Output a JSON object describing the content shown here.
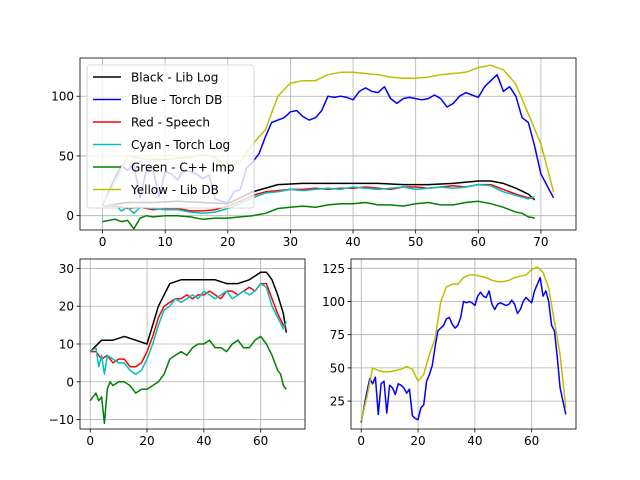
{
  "chart_data": [
    {
      "type": "line",
      "title": "",
      "xlabel": "",
      "ylabel": "",
      "grid": true,
      "xlim": [
        -3.6,
        75.6
      ],
      "ylim": [
        -12,
        132
      ],
      "xticks": [
        0,
        10,
        20,
        30,
        40,
        50,
        60,
        70
      ],
      "yticks": [
        0,
        50,
        100
      ],
      "legend": {
        "position": "upper-left"
      },
      "series": [
        {
          "name": "Black - Lib Log",
          "color": "#000000",
          "x": [
            0,
            4,
            8,
            12,
            16,
            20,
            24,
            28,
            32,
            36,
            40,
            44,
            48,
            52,
            56,
            60,
            62,
            64,
            66,
            68,
            69
          ],
          "values": [
            8,
            11,
            11,
            12,
            11,
            10,
            20,
            26,
            27,
            27,
            27,
            27,
            26,
            26,
            27,
            29,
            29,
            27,
            23,
            18,
            13
          ]
        },
        {
          "name": "Blue - Torch DB",
          "color": "#0000ff",
          "x": [
            0,
            2,
            3,
            4,
            5,
            6,
            7,
            8,
            9,
            10,
            11,
            12,
            13,
            14,
            15,
            16,
            17,
            18,
            19,
            20,
            21,
            22,
            23,
            24,
            25,
            26,
            27,
            28,
            29,
            30,
            31,
            32,
            33,
            34,
            35,
            36,
            37,
            38,
            39,
            40,
            41,
            42,
            43,
            44,
            45,
            46,
            47,
            48,
            49,
            50,
            51,
            52,
            53,
            54,
            55,
            56,
            57,
            58,
            59,
            60,
            61,
            62,
            63,
            64,
            65,
            66,
            67,
            68,
            69,
            70,
            72
          ],
          "values": [
            9,
            32,
            42,
            38,
            43,
            15,
            38,
            40,
            16,
            37,
            35,
            30,
            38,
            37,
            35,
            31,
            34,
            14,
            12,
            11,
            20,
            22,
            40,
            45,
            52,
            66,
            78,
            80,
            82,
            87,
            88,
            83,
            80,
            82,
            88,
            100,
            99,
            100,
            99,
            97,
            104,
            107,
            104,
            103,
            108,
            98,
            94,
            98,
            99,
            98,
            97,
            98,
            101,
            98,
            91,
            94,
            100,
            103,
            101,
            99,
            108,
            113,
            118,
            104,
            108,
            100,
            82,
            78,
            58,
            35,
            15
          ]
        },
        {
          "name": "Red - Speech",
          "color": "#ff0000",
          "x": [
            0,
            2,
            4,
            6,
            8,
            10,
            12,
            14,
            16,
            18,
            20,
            22,
            24,
            26,
            28,
            30,
            32,
            34,
            36,
            38,
            40,
            42,
            44,
            46,
            48,
            50,
            52,
            54,
            56,
            58,
            60,
            62,
            64,
            66,
            68,
            69
          ],
          "values": [
            8,
            8,
            6,
            7,
            5,
            6,
            6,
            4,
            4,
            5,
            8,
            12,
            17,
            20,
            21,
            22,
            22,
            23,
            22,
            23,
            23,
            24,
            23,
            22,
            24,
            24,
            23,
            24,
            25,
            24,
            26,
            26,
            22,
            18,
            15,
            14
          ]
        },
        {
          "name": "Cyan - Torch Log",
          "color": "#00bfbf",
          "x": [
            0,
            2,
            3,
            4,
            5,
            6,
            8,
            10,
            12,
            14,
            16,
            18,
            20,
            22,
            24,
            26,
            28,
            30,
            32,
            34,
            36,
            38,
            40,
            42,
            44,
            46,
            48,
            50,
            52,
            54,
            56,
            58,
            60,
            62,
            64,
            66,
            68,
            69
          ],
          "values": [
            8,
            9,
            4,
            7,
            2,
            7,
            6,
            5,
            5,
            3,
            2,
            3,
            6,
            10,
            15,
            19,
            20,
            22,
            21,
            22,
            23,
            22,
            24,
            23,
            22,
            23,
            24,
            22,
            23,
            24,
            23,
            24,
            26,
            25,
            20,
            17,
            14,
            16
          ]
        },
        {
          "name": "Green - C++ Imp",
          "color": "#008000",
          "x": [
            0,
            2,
            3,
            4,
            5,
            6,
            7,
            8,
            10,
            12,
            14,
            16,
            18,
            20,
            22,
            24,
            26,
            28,
            30,
            32,
            34,
            36,
            38,
            40,
            42,
            44,
            46,
            48,
            50,
            52,
            54,
            56,
            58,
            60,
            62,
            64,
            66,
            67,
            68,
            69
          ],
          "values": [
            -5,
            -3,
            -5,
            -4,
            -11,
            -2,
            0,
            -1,
            0,
            0,
            -1,
            -3,
            -2,
            -2,
            -1,
            0,
            2,
            6,
            7,
            8,
            7,
            9,
            10,
            10,
            11,
            9,
            9,
            8,
            10,
            11,
            9,
            9,
            11,
            12,
            10,
            7,
            3,
            2,
            -1,
            -2
          ]
        },
        {
          "name": "Yellow - Lib DB",
          "color": "#bfbf00",
          "x": [
            0,
            2,
            4,
            6,
            8,
            10,
            12,
            14,
            16,
            18,
            20,
            22,
            24,
            26,
            28,
            30,
            32,
            34,
            36,
            38,
            40,
            42,
            44,
            46,
            48,
            50,
            52,
            54,
            56,
            58,
            60,
            62,
            64,
            66,
            68,
            70,
            72
          ],
          "values": [
            10,
            28,
            50,
            48,
            47,
            47,
            48,
            49,
            51,
            49,
            40,
            45,
            60,
            72,
            100,
            111,
            113,
            113,
            118,
            120,
            120,
            119,
            118,
            116,
            115,
            115,
            116,
            118,
            119,
            120,
            124,
            126,
            122,
            110,
            85,
            60,
            20
          ]
        }
      ]
    },
    {
      "type": "line",
      "title": "",
      "xlabel": "",
      "ylabel": "",
      "grid": true,
      "xlim": [
        -3.6,
        75.6
      ],
      "ylim": [
        -12.5,
        32.5
      ],
      "xticks": [
        0,
        20,
        40,
        60
      ],
      "yticks": [
        -10,
        0,
        10,
        20,
        30
      ],
      "series_ref": [
        "Black - Lib Log",
        "Red - Speech",
        "Cyan - Torch Log",
        "Green - C++ Imp"
      ]
    },
    {
      "type": "line",
      "title": "",
      "xlabel": "",
      "ylabel": "",
      "grid": true,
      "xlim": [
        -3.6,
        75.6
      ],
      "ylim": [
        4,
        132
      ],
      "xticks": [
        0,
        20,
        40,
        60
      ],
      "yticks": [
        25,
        50,
        75,
        100,
        125
      ],
      "series_ref": [
        "Blue - Torch DB",
        "Yellow - Lib DB"
      ]
    }
  ]
}
